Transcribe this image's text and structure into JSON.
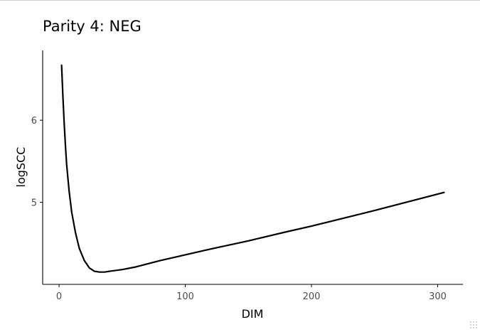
{
  "chart_data": {
    "type": "line",
    "title": "Parity 4: NEG",
    "xlabel": "DIM",
    "ylabel": "logSCC",
    "xlim": [
      -13,
      320
    ],
    "ylim": [
      4.0,
      6.85
    ],
    "x_ticks": [
      0,
      100,
      200,
      300
    ],
    "y_ticks": [
      5,
      6
    ],
    "grid": false,
    "series": [
      {
        "x": [
          2,
          3,
          4,
          5,
          6,
          8,
          10,
          13,
          16,
          20,
          24,
          28,
          32,
          36,
          40,
          50,
          60,
          80,
          100,
          120,
          150,
          180,
          200,
          250,
          305
        ],
        "y": [
          6.67,
          6.3,
          5.98,
          5.7,
          5.46,
          5.13,
          4.88,
          4.63,
          4.44,
          4.29,
          4.2,
          4.16,
          4.15,
          4.15,
          4.16,
          4.18,
          4.21,
          4.29,
          4.36,
          4.43,
          4.53,
          4.64,
          4.71,
          4.9,
          5.12
        ]
      }
    ]
  },
  "colors": {
    "line": "#000000",
    "axis": "#000000",
    "tick_label": "#4d4d4d",
    "background": "#ffffff"
  },
  "icons": {
    "resize_grip": "resize-grip-icon"
  }
}
